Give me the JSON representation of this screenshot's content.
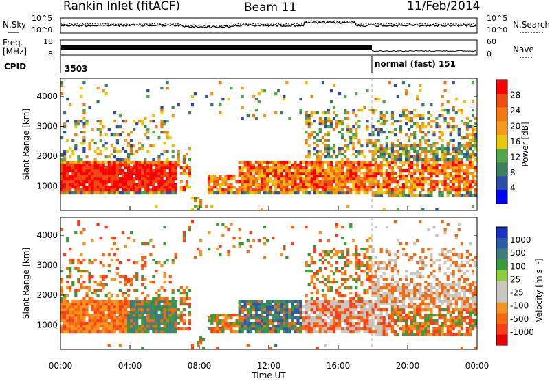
{
  "header": {
    "station": "Rankin Inlet (fitACF)",
    "beam": "Beam 11",
    "date": "11/Feb/2014"
  },
  "top_panels": {
    "nsky_label": "N.Sky",
    "nsearch_label": "N.Search",
    "noise_ticks_left": [
      "10^5",
      "10^0"
    ],
    "noise_ticks_right": [
      "10^5",
      "10^0"
    ],
    "freq_label_top": "Freq.",
    "freq_label_unit": "[MHz]",
    "freq_ticks": [
      "18",
      "8"
    ],
    "nave_label": "Nave",
    "nave_ticks": [
      "60",
      "0"
    ],
    "cpid_label": "CPID",
    "cpid_first": "3503",
    "cpid_second": "normal (fast) 151"
  },
  "x_axis": {
    "label": "Time UT",
    "ticks": [
      "00:00",
      "04:00",
      "08:00",
      "12:00",
      "16:00",
      "20:00",
      "00:00"
    ]
  },
  "colors": {
    "power_scale": [
      "#0000ff",
      "#2b4da8",
      "#3d7f5c",
      "#51a84b",
      "#e9c80a",
      "#f59a1a",
      "#f27a11",
      "#ef4a0f",
      "#ff0000"
    ],
    "velocity_scale": [
      "#e80000",
      "#ff3b1a",
      "#f56a10",
      "#f39320",
      "#c8c8c0",
      "#c8c8c0",
      "#8ccf3a",
      "#3a9a3a",
      "#3e7d7a",
      "#2a5ca6",
      "#1933c2"
    ]
  },
  "chart_data": [
    {
      "type": "heatmap",
      "name": "power-panel",
      "xlabel": "Time UT",
      "ylabel": "Slant Range [km]",
      "x_range_hours": [
        0,
        24
      ],
      "ylim": [
        180,
        4600
      ],
      "y_ticks": [
        1000,
        2000,
        3000,
        4000
      ],
      "colorbar_label": "Power [dB]",
      "colorbar_ticks": [
        "4",
        "8",
        "12",
        "16",
        "20",
        "24",
        "28"
      ],
      "colorbar_range": [
        0,
        32
      ]
    },
    {
      "type": "heatmap",
      "name": "velocity-panel",
      "xlabel": "Time UT",
      "ylabel": "Slant Range [km]",
      "x_range_hours": [
        0,
        24
      ],
      "ylim": [
        180,
        4600
      ],
      "y_ticks": [
        1000,
        2000,
        3000,
        4000
      ],
      "colorbar_label": "Velocity [m s⁻¹]",
      "colorbar_ticks": [
        "1000",
        "500",
        "100",
        "25",
        "-25",
        "-100",
        "-500",
        "-1000"
      ]
    }
  ]
}
